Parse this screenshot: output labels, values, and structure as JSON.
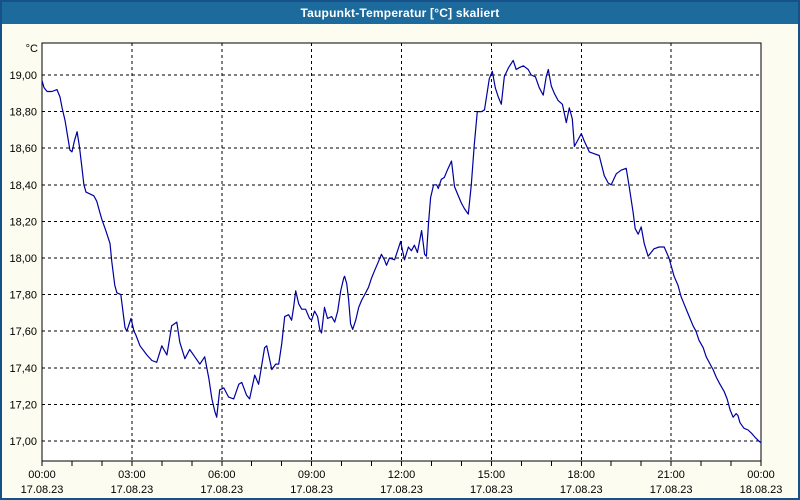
{
  "window": {
    "title": "Taupunkt-Temperatur [°C] skaliert",
    "titlebar_color": "#1d6a9c",
    "border_color": "#17518a",
    "background_color": "#fcfcf0",
    "plot_background": "#ffffff",
    "grid_color": "#000000",
    "text_color": "#000000"
  },
  "chart_data": {
    "type": "line",
    "title": "Taupunkt-Temperatur [°C] skaliert",
    "y_unit_label": "°C",
    "ylabel": "Taupunkt-Temperatur",
    "ylim": [
      17.0,
      19.0
    ],
    "xlim_hours": [
      0,
      24
    ],
    "grid": "dashed",
    "x_minor_tick_every_hours": 1,
    "line_color": "#0000a0",
    "y_ticks": [
      {
        "label": "19,00",
        "value": 19.0
      },
      {
        "label": "18,80",
        "value": 18.8
      },
      {
        "label": "18,60",
        "value": 18.6
      },
      {
        "label": "18,40",
        "value": 18.4
      },
      {
        "label": "18,20",
        "value": 18.2
      },
      {
        "label": "18,00",
        "value": 18.0
      },
      {
        "label": "17,80",
        "value": 17.8
      },
      {
        "label": "17,60",
        "value": 17.6
      },
      {
        "label": "17,40",
        "value": 17.4
      },
      {
        "label": "17,20",
        "value": 17.2
      },
      {
        "label": "17,00",
        "value": 17.0
      }
    ],
    "x_ticks": [
      {
        "hour": 0,
        "time": "00:00",
        "date": "17.08.23"
      },
      {
        "hour": 3,
        "time": "03:00",
        "date": "17.08.23"
      },
      {
        "hour": 6,
        "time": "06:00",
        "date": "17.08.23"
      },
      {
        "hour": 9,
        "time": "09:00",
        "date": "17.08.23"
      },
      {
        "hour": 12,
        "time": "12:00",
        "date": "17.08.23"
      },
      {
        "hour": 15,
        "time": "15:00",
        "date": "17.08.23"
      },
      {
        "hour": 18,
        "time": "18:00",
        "date": "17.08.23"
      },
      {
        "hour": 21,
        "time": "21:00",
        "date": "17.08.23"
      },
      {
        "hour": 24,
        "time": "00:00",
        "date": "18.08.23"
      }
    ],
    "series": [
      {
        "name": "Taupunkt-Temperatur",
        "points": [
          [
            0.0,
            18.97
          ],
          [
            0.07,
            18.93
          ],
          [
            0.17,
            18.91
          ],
          [
            0.33,
            18.91
          ],
          [
            0.5,
            18.92
          ],
          [
            0.6,
            18.88
          ],
          [
            0.67,
            18.82
          ],
          [
            0.77,
            18.75
          ],
          [
            0.87,
            18.65
          ],
          [
            0.93,
            18.59
          ],
          [
            1.0,
            18.58
          ],
          [
            1.08,
            18.64
          ],
          [
            1.17,
            18.69
          ],
          [
            1.25,
            18.61
          ],
          [
            1.33,
            18.5
          ],
          [
            1.4,
            18.4
          ],
          [
            1.47,
            18.36
          ],
          [
            1.6,
            18.35
          ],
          [
            1.73,
            18.34
          ],
          [
            1.83,
            18.31
          ],
          [
            1.93,
            18.25
          ],
          [
            2.0,
            18.21
          ],
          [
            2.13,
            18.15
          ],
          [
            2.27,
            18.08
          ],
          [
            2.33,
            17.98
          ],
          [
            2.43,
            17.85
          ],
          [
            2.5,
            17.81
          ],
          [
            2.63,
            17.8
          ],
          [
            2.77,
            17.62
          ],
          [
            2.83,
            17.6
          ],
          [
            2.97,
            17.67
          ],
          [
            3.07,
            17.6
          ],
          [
            3.13,
            17.58
          ],
          [
            3.27,
            17.52
          ],
          [
            3.5,
            17.47
          ],
          [
            3.67,
            17.44
          ],
          [
            3.83,
            17.43
          ],
          [
            4.0,
            17.52
          ],
          [
            4.17,
            17.47
          ],
          [
            4.33,
            17.63
          ],
          [
            4.5,
            17.65
          ],
          [
            4.6,
            17.54
          ],
          [
            4.77,
            17.45
          ],
          [
            4.93,
            17.5
          ],
          [
            5.1,
            17.46
          ],
          [
            5.27,
            17.42
          ],
          [
            5.43,
            17.46
          ],
          [
            5.57,
            17.34
          ],
          [
            5.67,
            17.23
          ],
          [
            5.77,
            17.16
          ],
          [
            5.83,
            17.13
          ],
          [
            5.93,
            17.28
          ],
          [
            6.07,
            17.29
          ],
          [
            6.23,
            17.24
          ],
          [
            6.4,
            17.23
          ],
          [
            6.57,
            17.31
          ],
          [
            6.67,
            17.32
          ],
          [
            6.83,
            17.25
          ],
          [
            6.93,
            17.23
          ],
          [
            7.1,
            17.36
          ],
          [
            7.23,
            17.31
          ],
          [
            7.43,
            17.51
          ],
          [
            7.5,
            17.52
          ],
          [
            7.67,
            17.39
          ],
          [
            7.8,
            17.42
          ],
          [
            7.9,
            17.42
          ],
          [
            8.0,
            17.53
          ],
          [
            8.1,
            17.68
          ],
          [
            8.23,
            17.69
          ],
          [
            8.33,
            17.66
          ],
          [
            8.4,
            17.73
          ],
          [
            8.47,
            17.82
          ],
          [
            8.57,
            17.75
          ],
          [
            8.67,
            17.72
          ],
          [
            8.8,
            17.72
          ],
          [
            8.93,
            17.67
          ],
          [
            9.0,
            17.66
          ],
          [
            9.1,
            17.71
          ],
          [
            9.2,
            17.68
          ],
          [
            9.27,
            17.61
          ],
          [
            9.33,
            17.59
          ],
          [
            9.43,
            17.73
          ],
          [
            9.53,
            17.67
          ],
          [
            9.67,
            17.68
          ],
          [
            9.77,
            17.65
          ],
          [
            9.87,
            17.71
          ],
          [
            9.97,
            17.82
          ],
          [
            10.07,
            17.89
          ],
          [
            10.1,
            17.9
          ],
          [
            10.17,
            17.86
          ],
          [
            10.23,
            17.78
          ],
          [
            10.3,
            17.64
          ],
          [
            10.37,
            17.61
          ],
          [
            10.47,
            17.66
          ],
          [
            10.57,
            17.73
          ],
          [
            10.67,
            17.77
          ],
          [
            10.77,
            17.8
          ],
          [
            10.9,
            17.84
          ],
          [
            11.0,
            17.89
          ],
          [
            11.1,
            17.93
          ],
          [
            11.23,
            17.98
          ],
          [
            11.33,
            18.02
          ],
          [
            11.43,
            17.99
          ],
          [
            11.5,
            17.96
          ],
          [
            11.6,
            18.0
          ],
          [
            11.77,
            17.99
          ],
          [
            11.97,
            18.09
          ],
          [
            12.1,
            17.99
          ],
          [
            12.23,
            18.06
          ],
          [
            12.33,
            18.04
          ],
          [
            12.43,
            18.07
          ],
          [
            12.53,
            18.03
          ],
          [
            12.67,
            18.15
          ],
          [
            12.77,
            18.02
          ],
          [
            12.83,
            18.01
          ],
          [
            12.9,
            18.19
          ],
          [
            12.97,
            18.33
          ],
          [
            13.07,
            18.4
          ],
          [
            13.17,
            18.4
          ],
          [
            13.23,
            18.38
          ],
          [
            13.33,
            18.43
          ],
          [
            13.43,
            18.44
          ],
          [
            13.53,
            18.48
          ],
          [
            13.67,
            18.53
          ],
          [
            13.77,
            18.39
          ],
          [
            13.87,
            18.35
          ],
          [
            14.0,
            18.3
          ],
          [
            14.1,
            18.27
          ],
          [
            14.23,
            18.24
          ],
          [
            14.33,
            18.4
          ],
          [
            14.43,
            18.62
          ],
          [
            14.53,
            18.8
          ],
          [
            14.67,
            18.8
          ],
          [
            14.77,
            18.81
          ],
          [
            14.93,
            18.98
          ],
          [
            15.03,
            19.02
          ],
          [
            15.13,
            18.93
          ],
          [
            15.23,
            18.88
          ],
          [
            15.33,
            18.84
          ],
          [
            15.43,
            18.99
          ],
          [
            15.57,
            19.04
          ],
          [
            15.73,
            19.08
          ],
          [
            15.83,
            19.03
          ],
          [
            15.93,
            19.04
          ],
          [
            16.07,
            19.05
          ],
          [
            16.23,
            19.03
          ],
          [
            16.33,
            19.0
          ],
          [
            16.47,
            18.99
          ],
          [
            16.6,
            18.93
          ],
          [
            16.73,
            18.89
          ],
          [
            16.83,
            18.99
          ],
          [
            16.9,
            19.03
          ],
          [
            17.0,
            18.94
          ],
          [
            17.1,
            18.9
          ],
          [
            17.23,
            18.86
          ],
          [
            17.37,
            18.84
          ],
          [
            17.5,
            18.74
          ],
          [
            17.6,
            18.82
          ],
          [
            17.7,
            18.76
          ],
          [
            17.77,
            18.61
          ],
          [
            17.87,
            18.64
          ],
          [
            18.0,
            18.68
          ],
          [
            18.1,
            18.64
          ],
          [
            18.27,
            18.58
          ],
          [
            18.43,
            18.57
          ],
          [
            18.6,
            18.56
          ],
          [
            18.77,
            18.45
          ],
          [
            18.9,
            18.41
          ],
          [
            19.0,
            18.4
          ],
          [
            19.17,
            18.46
          ],
          [
            19.33,
            18.48
          ],
          [
            19.5,
            18.49
          ],
          [
            19.6,
            18.39
          ],
          [
            19.73,
            18.25
          ],
          [
            19.8,
            18.16
          ],
          [
            19.9,
            18.13
          ],
          [
            20.0,
            18.17
          ],
          [
            20.1,
            18.08
          ],
          [
            20.23,
            18.01
          ],
          [
            20.33,
            18.03
          ],
          [
            20.43,
            18.05
          ],
          [
            20.6,
            18.06
          ],
          [
            20.77,
            18.06
          ],
          [
            20.93,
            18.0
          ],
          [
            21.1,
            17.9
          ],
          [
            21.23,
            17.85
          ],
          [
            21.33,
            17.79
          ],
          [
            21.43,
            17.75
          ],
          [
            21.53,
            17.71
          ],
          [
            21.63,
            17.67
          ],
          [
            21.73,
            17.63
          ],
          [
            21.83,
            17.6
          ],
          [
            21.93,
            17.55
          ],
          [
            22.07,
            17.51
          ],
          [
            22.17,
            17.46
          ],
          [
            22.3,
            17.42
          ],
          [
            22.4,
            17.39
          ],
          [
            22.5,
            17.35
          ],
          [
            22.63,
            17.31
          ],
          [
            22.77,
            17.27
          ],
          [
            22.87,
            17.23
          ],
          [
            22.97,
            17.17
          ],
          [
            23.07,
            17.13
          ],
          [
            23.17,
            17.15
          ],
          [
            23.23,
            17.14
          ],
          [
            23.3,
            17.1
          ],
          [
            23.43,
            17.07
          ],
          [
            23.57,
            17.06
          ],
          [
            23.7,
            17.04
          ],
          [
            23.8,
            17.02
          ],
          [
            23.93,
            17.0
          ],
          [
            24.0,
            16.99
          ]
        ]
      }
    ]
  }
}
